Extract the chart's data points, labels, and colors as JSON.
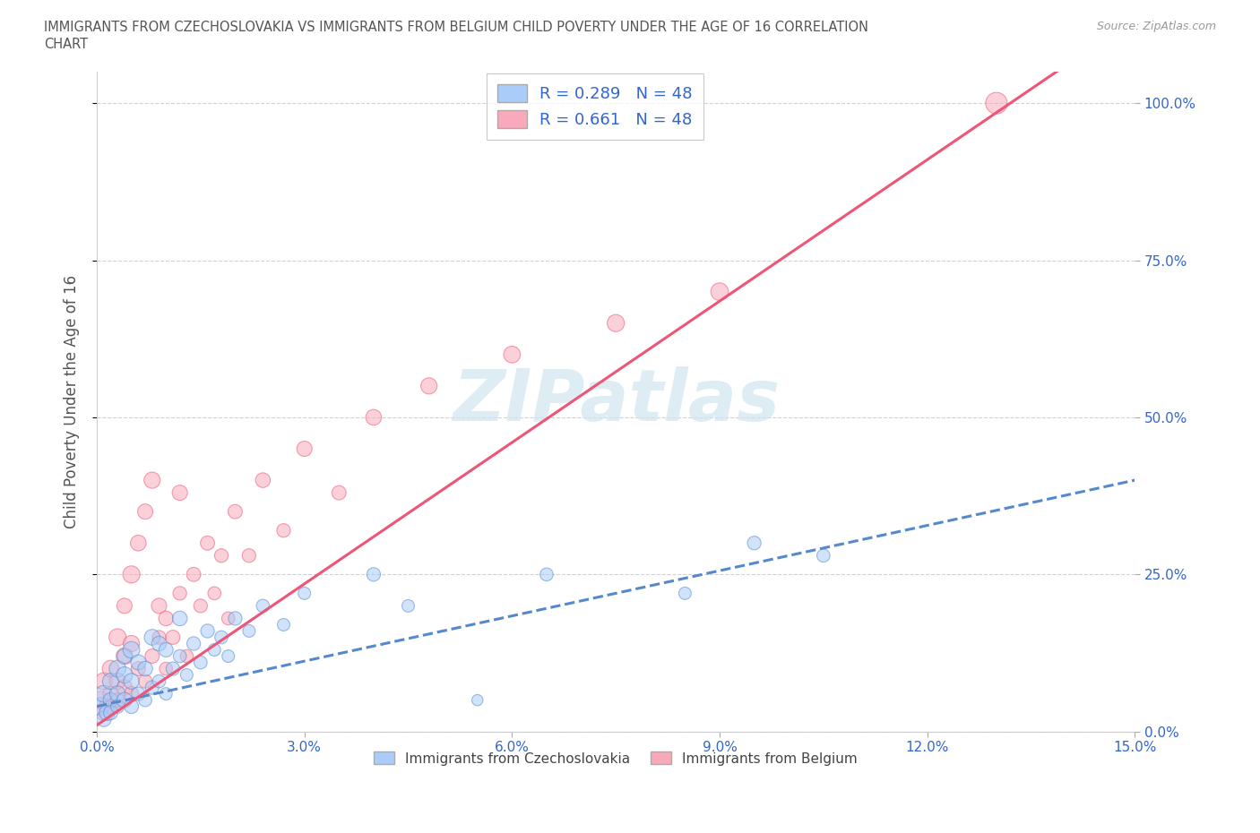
{
  "title": "IMMIGRANTS FROM CZECHOSLOVAKIA VS IMMIGRANTS FROM BELGIUM CHILD POVERTY UNDER THE AGE OF 16 CORRELATION\nCHART",
  "source": "Source: ZipAtlas.com",
  "ylabel": "Child Poverty Under the Age of 16",
  "xlim": [
    0.0,
    0.15
  ],
  "ylim": [
    0.0,
    1.05
  ],
  "x_ticks": [
    0.0,
    0.03,
    0.06,
    0.09,
    0.12,
    0.15
  ],
  "x_tick_labels": [
    "0.0%",
    "3.0%",
    "6.0%",
    "9.0%",
    "12.0%",
    "15.0%"
  ],
  "y_ticks": [
    0.0,
    0.25,
    0.5,
    0.75,
    1.0
  ],
  "y_tick_labels": [
    "0.0%",
    "25.0%",
    "50.0%",
    "75.0%",
    "100.0%"
  ],
  "R_czech": 0.289,
  "N_czech": 48,
  "R_belgium": 0.661,
  "N_belgium": 48,
  "color_czech": "#aaccf8",
  "color_belgium": "#f8aabb",
  "line_color_czech": "#5588cc",
  "line_color_belgium": "#ee5577",
  "watermark_color": "#d0e4f0",
  "legend_label_czech": "Immigrants from Czechoslovakia",
  "legend_label_belgium": "Immigrants from Belgium",
  "czech_line_intercept": 0.04,
  "czech_line_slope": 2.4,
  "belgium_line_intercept": 0.01,
  "belgium_line_slope": 7.5,
  "scatter_czech_x": [
    0.0005,
    0.001,
    0.001,
    0.0015,
    0.002,
    0.002,
    0.002,
    0.003,
    0.003,
    0.003,
    0.004,
    0.004,
    0.004,
    0.005,
    0.005,
    0.005,
    0.006,
    0.006,
    0.007,
    0.007,
    0.008,
    0.008,
    0.009,
    0.009,
    0.01,
    0.01,
    0.011,
    0.012,
    0.012,
    0.013,
    0.014,
    0.015,
    0.016,
    0.017,
    0.018,
    0.019,
    0.02,
    0.022,
    0.024,
    0.027,
    0.03,
    0.04,
    0.045,
    0.055,
    0.065,
    0.085,
    0.095,
    0.105
  ],
  "scatter_czech_y": [
    0.04,
    0.02,
    0.06,
    0.03,
    0.05,
    0.08,
    0.03,
    0.06,
    0.1,
    0.04,
    0.05,
    0.09,
    0.12,
    0.04,
    0.08,
    0.13,
    0.06,
    0.11,
    0.05,
    0.1,
    0.07,
    0.15,
    0.08,
    0.14,
    0.06,
    0.13,
    0.1,
    0.12,
    0.18,
    0.09,
    0.14,
    0.11,
    0.16,
    0.13,
    0.15,
    0.12,
    0.18,
    0.16,
    0.2,
    0.17,
    0.22,
    0.25,
    0.2,
    0.05,
    0.25,
    0.22,
    0.3,
    0.28
  ],
  "scatter_belgium_x": [
    0.0005,
    0.001,
    0.001,
    0.0015,
    0.002,
    0.002,
    0.002,
    0.003,
    0.003,
    0.003,
    0.004,
    0.004,
    0.004,
    0.005,
    0.005,
    0.005,
    0.006,
    0.006,
    0.007,
    0.007,
    0.008,
    0.008,
    0.009,
    0.009,
    0.01,
    0.01,
    0.011,
    0.012,
    0.012,
    0.013,
    0.014,
    0.015,
    0.016,
    0.017,
    0.018,
    0.019,
    0.02,
    0.022,
    0.024,
    0.027,
    0.03,
    0.035,
    0.04,
    0.048,
    0.06,
    0.075,
    0.09,
    0.13
  ],
  "scatter_belgium_y": [
    0.05,
    0.03,
    0.08,
    0.04,
    0.06,
    0.1,
    0.04,
    0.08,
    0.15,
    0.05,
    0.07,
    0.12,
    0.2,
    0.06,
    0.14,
    0.25,
    0.1,
    0.3,
    0.08,
    0.35,
    0.12,
    0.4,
    0.15,
    0.2,
    0.1,
    0.18,
    0.15,
    0.22,
    0.38,
    0.12,
    0.25,
    0.2,
    0.3,
    0.22,
    0.28,
    0.18,
    0.35,
    0.28,
    0.4,
    0.32,
    0.45,
    0.38,
    0.5,
    0.55,
    0.6,
    0.65,
    0.7,
    1.0
  ],
  "scatter_sizes_czech": [
    200,
    150,
    180,
    160,
    140,
    170,
    130,
    160,
    180,
    120,
    150,
    170,
    140,
    130,
    160,
    180,
    120,
    150,
    110,
    140,
    120,
    160,
    110,
    140,
    100,
    130,
    120,
    110,
    140,
    100,
    120,
    110,
    120,
    100,
    110,
    100,
    120,
    100,
    110,
    100,
    100,
    120,
    100,
    80,
    110,
    100,
    120,
    110
  ],
  "scatter_sizes_belgium": [
    200,
    160,
    190,
    170,
    150,
    180,
    140,
    170,
    190,
    130,
    160,
    180,
    150,
    140,
    170,
    190,
    130,
    160,
    120,
    150,
    130,
    170,
    120,
    150,
    110,
    140,
    130,
    120,
    150,
    110,
    130,
    120,
    130,
    110,
    120,
    110,
    130,
    120,
    140,
    120,
    150,
    130,
    160,
    170,
    180,
    190,
    200,
    300
  ]
}
